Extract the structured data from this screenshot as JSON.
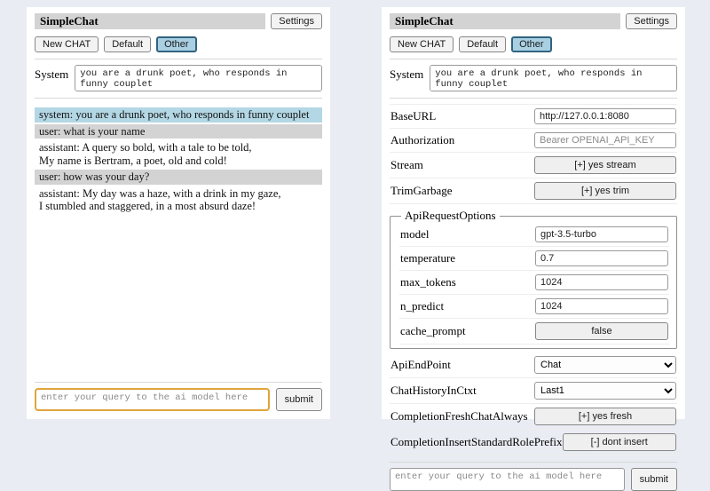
{
  "header": {
    "title": "SimpleChat",
    "settings_button": "Settings",
    "new_chat_button": "New CHAT",
    "session_default": "Default",
    "session_other": "Other"
  },
  "system_prompt": {
    "label": "System",
    "value": "you are a drunk poet, who responds in funny couplet"
  },
  "chat": {
    "messages": [
      {
        "role": "system",
        "text": "system: you are a drunk poet, who responds in funny couplet"
      },
      {
        "role": "user",
        "text": "user: what is your name"
      },
      {
        "role": "assistant",
        "text": "assistant: A query so bold, with a tale to be told,\nMy name is Bertram, a poet, old and cold!"
      },
      {
        "role": "user",
        "text": "user: how was your day?"
      },
      {
        "role": "assistant",
        "text": "assistant: My day was a haze, with a drink in my gaze,\nI stumbled and staggered, in a most absurd daze!"
      }
    ]
  },
  "query": {
    "placeholder": "enter your query to the ai model here",
    "submit_label": "submit"
  },
  "settings": {
    "base_url": {
      "label": "BaseURL",
      "value": "http://127.0.0.1:8080"
    },
    "authorization": {
      "label": "Authorization",
      "placeholder": "Bearer OPENAI_API_KEY"
    },
    "stream": {
      "label": "Stream",
      "button": "[+] yes stream"
    },
    "trim_garbage": {
      "label": "TrimGarbage",
      "button": "[+] yes trim"
    },
    "api_request_options": {
      "legend": "ApiRequestOptions",
      "model": {
        "label": "model",
        "value": "gpt-3.5-turbo"
      },
      "temperature": {
        "label": "temperature",
        "value": "0.7"
      },
      "max_tokens": {
        "label": "max_tokens",
        "value": "1024"
      },
      "n_predict": {
        "label": "n_predict",
        "value": "1024"
      },
      "cache_prompt": {
        "label": "cache_prompt",
        "button": "false"
      }
    },
    "api_endpoint": {
      "label": "ApiEndPoint",
      "selected": "Chat"
    },
    "chat_history_in_ctxt": {
      "label": "ChatHistoryInCtxt",
      "selected": "Last1"
    },
    "completion_fresh_chat_always": {
      "label": "CompletionFreshChatAlways",
      "button": "[+] yes fresh"
    },
    "completion_insert_standard_role_prefix": {
      "label": "CompletionInsertStandardRolePrefix",
      "button": "[-] dont insert"
    }
  },
  "colors": {
    "page_background": "#e9ecf2",
    "titlebar": "#d3d3d3",
    "system_message": "#b3d7e4",
    "user_message": "#d3d3d3",
    "active_session_bg": "#a9d0e2",
    "active_session_border": "#31637f",
    "focused_input_border": "#e0a43b"
  }
}
